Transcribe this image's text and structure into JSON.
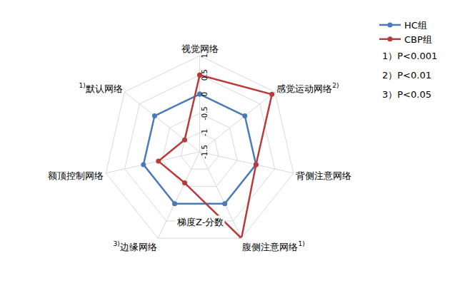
{
  "chart_data": {
    "type": "radar",
    "categories": [
      "视觉网络",
      "感觉运动网络",
      "背侧注意网络",
      "腹侧注意网络",
      "边缘网络",
      "额顶控制网络",
      "默认网络"
    ],
    "significance_marks": [
      null,
      "2)",
      null,
      "1)",
      "3)",
      null,
      "1)"
    ],
    "series": [
      {
        "name": "HC组",
        "color": "#4a7ab8",
        "marker": "circle",
        "line_style": "solid",
        "values": [
          0,
          0,
          0,
          0,
          0,
          0,
          0
        ]
      },
      {
        "name": "CBP组",
        "color": "#b83a3a",
        "marker": "circle",
        "line_style": "solid",
        "values": [
          0.5,
          0.9,
          0,
          1,
          -0.6,
          -0.4,
          -1
        ]
      }
    ],
    "radial_title": "梯度Z-分数",
    "ylim": [
      -1.5,
      1
    ],
    "yticks": [
      -1.5,
      -1,
      -0.5,
      0,
      0.5,
      1
    ],
    "annotations": [
      "1）P<0.001",
      "2）P<0.01",
      "3）P<0.05"
    ],
    "legend": "upper right",
    "grid": true
  }
}
